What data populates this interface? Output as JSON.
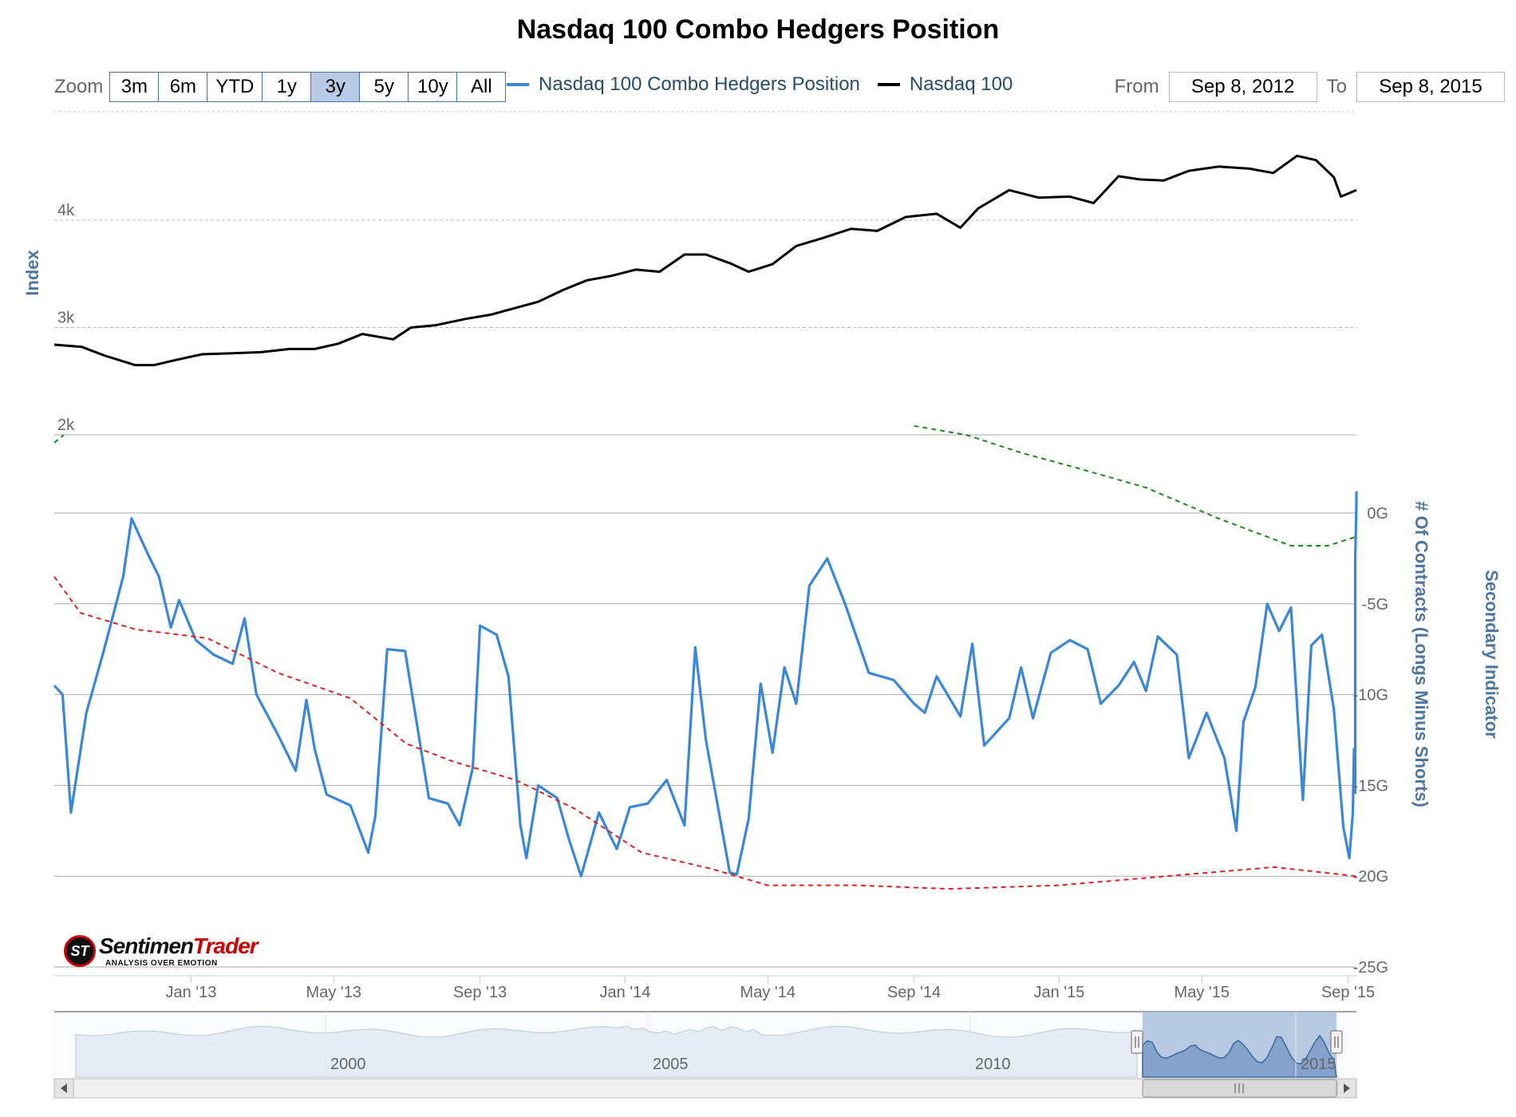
{
  "title": "Nasdaq 100 Combo Hedgers Position",
  "zoom": {
    "label": "Zoom",
    "buttons": [
      "3m",
      "6m",
      "YTD",
      "1y",
      "3y",
      "5y",
      "10y",
      "All"
    ],
    "active": "3y"
  },
  "legend": [
    {
      "name": "Nasdaq 100 Combo Hedgers Position",
      "color": "#3a87d6"
    },
    {
      "name": "Nasdaq 100",
      "color": "#000000"
    }
  ],
  "range": {
    "from_label": "From",
    "from": "Sep 8, 2012",
    "to_label": "To",
    "to": "Sep 8, 2015"
  },
  "logo": {
    "word1": "Sentimen",
    "word2": "Trader",
    "tagline": "ANALYSIS OVER EMOTION",
    "mark": "ST"
  },
  "colors": {
    "index": "#000000",
    "hedgers": "#3a87d6",
    "upper_band": "#1a8a1a",
    "lower_band": "#e02020",
    "axis_title": "#4d759e"
  },
  "chart_data": [
    {
      "type": "line",
      "ylabel": "Index",
      "y_ticks": [
        "2k",
        "3k",
        "4k"
      ],
      "ylim": [
        2000,
        5000
      ],
      "x_ticks": [
        "Jan '13",
        "May '13",
        "Sep '13",
        "Jan '14",
        "May '14",
        "Sep '14",
        "Jan '15",
        "May '15",
        "Sep '15"
      ],
      "xlim": [
        "2012-09-08",
        "2015-09-08"
      ],
      "series": [
        {
          "name": "Nasdaq 100",
          "points": [
            [
              "2012-09-08",
              2840
            ],
            [
              "2012-10-01",
              2820
            ],
            [
              "2012-10-20",
              2740
            ],
            [
              "2012-11-15",
              2650
            ],
            [
              "2012-12-01",
              2650
            ],
            [
              "2012-12-20",
              2700
            ],
            [
              "2013-01-10",
              2750
            ],
            [
              "2013-02-05",
              2760
            ],
            [
              "2013-03-01",
              2770
            ],
            [
              "2013-03-25",
              2800
            ],
            [
              "2013-04-15",
              2800
            ],
            [
              "2013-05-05",
              2850
            ],
            [
              "2013-05-25",
              2940
            ],
            [
              "2013-06-20",
              2890
            ],
            [
              "2013-07-05",
              3000
            ],
            [
              "2013-07-25",
              3020
            ],
            [
              "2013-08-20",
              3080
            ],
            [
              "2013-09-10",
              3120
            ],
            [
              "2013-09-30",
              3180
            ],
            [
              "2013-10-20",
              3240
            ],
            [
              "2013-11-10",
              3350
            ],
            [
              "2013-11-30",
              3440
            ],
            [
              "2013-12-20",
              3480
            ],
            [
              "2014-01-10",
              3540
            ],
            [
              "2014-01-30",
              3520
            ],
            [
              "2014-02-20",
              3680
            ],
            [
              "2014-03-10",
              3680
            ],
            [
              "2014-03-30",
              3600
            ],
            [
              "2014-04-15",
              3520
            ],
            [
              "2014-05-05",
              3590
            ],
            [
              "2014-05-25",
              3760
            ],
            [
              "2014-06-15",
              3830
            ],
            [
              "2014-07-10",
              3920
            ],
            [
              "2014-08-01",
              3900
            ],
            [
              "2014-08-25",
              4030
            ],
            [
              "2014-09-20",
              4060
            ],
            [
              "2014-10-10",
              3930
            ],
            [
              "2014-10-25",
              4110
            ],
            [
              "2014-11-20",
              4280
            ],
            [
              "2014-12-15",
              4210
            ],
            [
              "2015-01-10",
              4220
            ],
            [
              "2015-01-30",
              4160
            ],
            [
              "2015-02-20",
              4410
            ],
            [
              "2015-03-10",
              4380
            ],
            [
              "2015-03-30",
              4370
            ],
            [
              "2015-04-20",
              4460
            ],
            [
              "2015-05-15",
              4500
            ],
            [
              "2015-06-10",
              4480
            ],
            [
              "2015-06-30",
              4440
            ],
            [
              "2015-07-20",
              4600
            ],
            [
              "2015-08-05",
              4560
            ],
            [
              "2015-08-20",
              4400
            ],
            [
              "2015-08-26",
              4220
            ],
            [
              "2015-09-08",
              4280
            ]
          ]
        }
      ]
    },
    {
      "type": "line",
      "ylabel": "# Of Contracts (Longs Minus Shorts)",
      "y2label": "Secondary Indicator",
      "y_ticks": [
        "-25G",
        "-20G",
        "-15G",
        "-10G",
        "-5G",
        "0G"
      ],
      "ylim": [
        -25,
        5
      ],
      "xlim": [
        "2012-09-08",
        "2015-09-08"
      ],
      "series": [
        {
          "name": "Nasdaq 100 Combo Hedgers Position",
          "points": [
            [
              "2012-09-08",
              -9.5
            ],
            [
              "2012-09-15",
              -10.0
            ],
            [
              "2012-09-22",
              -16.5
            ],
            [
              "2012-10-05",
              -11.0
            ],
            [
              "2012-10-20",
              -7.5
            ],
            [
              "2012-11-05",
              -3.5
            ],
            [
              "2012-11-12",
              -0.3
            ],
            [
              "2012-11-26",
              -2.3
            ],
            [
              "2012-12-05",
              -3.5
            ],
            [
              "2012-12-15",
              -6.3
            ],
            [
              "2012-12-22",
              -4.8
            ],
            [
              "2013-01-05",
              -7.0
            ],
            [
              "2013-01-20",
              -7.8
            ],
            [
              "2013-02-05",
              -8.3
            ],
            [
              "2013-02-15",
              -5.8
            ],
            [
              "2013-02-25",
              -10.0
            ],
            [
              "2013-03-15",
              -12.2
            ],
            [
              "2013-03-30",
              -14.2
            ],
            [
              "2013-04-08",
              -10.3
            ],
            [
              "2013-04-15",
              -13.0
            ],
            [
              "2013-04-25",
              -15.5
            ],
            [
              "2013-05-15",
              -16.1
            ],
            [
              "2013-05-30",
              -18.7
            ],
            [
              "2013-06-05",
              -16.7
            ],
            [
              "2013-06-15",
              -7.5
            ],
            [
              "2013-06-30",
              -7.6
            ],
            [
              "2013-07-20",
              -15.7
            ],
            [
              "2013-08-05",
              -16.0
            ],
            [
              "2013-08-15",
              -17.2
            ],
            [
              "2013-08-26",
              -14.0
            ],
            [
              "2013-09-01",
              -6.2
            ],
            [
              "2013-09-15",
              -6.7
            ],
            [
              "2013-09-25",
              -9.0
            ],
            [
              "2013-10-05",
              -17.2
            ],
            [
              "2013-10-10",
              -19.0
            ],
            [
              "2013-10-20",
              -15.0
            ],
            [
              "2013-11-05",
              -15.7
            ],
            [
              "2013-11-15",
              -18.0
            ],
            [
              "2013-11-25",
              -20.0
            ],
            [
              "2013-12-10",
              -16.5
            ],
            [
              "2013-12-25",
              -18.5
            ],
            [
              "2014-01-05",
              -16.2
            ],
            [
              "2014-01-20",
              -16.0
            ],
            [
              "2014-02-05",
              -14.7
            ],
            [
              "2014-02-20",
              -17.2
            ],
            [
              "2014-03-01",
              -7.4
            ],
            [
              "2014-03-10",
              -12.5
            ],
            [
              "2014-03-30",
              -19.8
            ],
            [
              "2014-04-05",
              -19.9
            ],
            [
              "2014-04-15",
              -16.8
            ],
            [
              "2014-04-25",
              -9.4
            ],
            [
              "2014-05-05",
              -13.2
            ],
            [
              "2014-05-15",
              -8.5
            ],
            [
              "2014-05-25",
              -10.5
            ],
            [
              "2014-06-05",
              -4.0
            ],
            [
              "2014-06-20",
              -2.5
            ],
            [
              "2014-07-05",
              -5.0
            ],
            [
              "2014-07-25",
              -8.8
            ],
            [
              "2014-08-15",
              -9.2
            ],
            [
              "2014-09-01",
              -10.5
            ],
            [
              "2014-09-10",
              -11.0
            ],
            [
              "2014-09-20",
              -9.0
            ],
            [
              "2014-10-10",
              -11.2
            ],
            [
              "2014-10-20",
              -7.2
            ],
            [
              "2014-10-30",
              -12.8
            ],
            [
              "2014-11-20",
              -11.3
            ],
            [
              "2014-11-30",
              -8.5
            ],
            [
              "2014-12-10",
              -11.3
            ],
            [
              "2014-12-25",
              -7.7
            ],
            [
              "2015-01-10",
              -7.0
            ],
            [
              "2015-01-25",
              -7.5
            ],
            [
              "2015-02-05",
              -10.5
            ],
            [
              "2015-02-20",
              -9.5
            ],
            [
              "2015-03-05",
              -8.2
            ],
            [
              "2015-03-15",
              -9.8
            ],
            [
              "2015-03-25",
              -6.8
            ],
            [
              "2015-04-10",
              -7.8
            ],
            [
              "2015-04-20",
              -13.5
            ],
            [
              "2015-05-05",
              -11.0
            ],
            [
              "2015-05-20",
              -13.5
            ],
            [
              "2015-05-30",
              -17.5
            ],
            [
              "2015-06-05",
              -11.5
            ],
            [
              "2015-06-15",
              -9.6
            ],
            [
              "2015-06-25",
              -5.0
            ],
            [
              "2015-07-05",
              -6.5
            ],
            [
              "2015-07-15",
              -5.2
            ],
            [
              "2015-07-25",
              -15.8
            ],
            [
              "2015-08-01",
              -7.3
            ],
            [
              "2015-08-10",
              -6.7
            ],
            [
              "2015-08-20",
              -10.8
            ],
            [
              "2015-08-28",
              -17.3
            ],
            [
              "2015-09-02",
              -19.0
            ],
            [
              "2015-09-05",
              -16.5
            ],
            [
              "2015-09-06",
              -13.0
            ],
            [
              "2015-09-07",
              -15.4
            ],
            [
              "2015-09-07",
              -2.5
            ],
            [
              "2015-09-08",
              0.5
            ],
            [
              "2015-09-08",
              1.2
            ]
          ]
        },
        {
          "name": "",
          "style": "dashed-red",
          "points": [
            [
              "2012-09-08",
              -3.5
            ],
            [
              "2012-09-30",
              -5.5
            ],
            [
              "2012-11-15",
              -6.4
            ],
            [
              "2013-01-15",
              -6.9
            ],
            [
              "2013-03-15",
              -8.8
            ],
            [
              "2013-05-15",
              -10.2
            ],
            [
              "2013-07-01",
              -12.7
            ],
            [
              "2013-08-10",
              -13.7
            ],
            [
              "2013-10-01",
              -14.7
            ],
            [
              "2013-11-20",
              -16.3
            ],
            [
              "2014-01-15",
              -18.7
            ],
            [
              "2014-03-15",
              -19.6
            ],
            [
              "2014-05-01",
              -20.5
            ],
            [
              "2014-07-15",
              -20.5
            ],
            [
              "2014-10-01",
              -20.7
            ],
            [
              "2015-01-01",
              -20.5
            ],
            [
              "2015-04-01",
              -20.0
            ],
            [
              "2015-07-01",
              -19.5
            ],
            [
              "2015-09-08",
              -20.0
            ]
          ]
        },
        {
          "name": "",
          "style": "dashed-green",
          "points": [
            [
              "2014-09-01",
              4.8
            ],
            [
              "2014-10-15",
              4.3
            ],
            [
              "2014-12-01",
              3.3
            ],
            [
              "2015-01-15",
              2.5
            ],
            [
              "2015-03-15",
              1.4
            ],
            [
              "2015-05-15",
              -0.3
            ],
            [
              "2015-07-15",
              -1.8
            ],
            [
              "2015-08-15",
              -1.8
            ],
            [
              "2015-09-08",
              -1.3
            ]
          ]
        }
      ]
    },
    {
      "type": "area",
      "role": "navigator",
      "x_ticks": [
        "2000",
        "2005",
        "2010",
        "2015"
      ]
    }
  ]
}
